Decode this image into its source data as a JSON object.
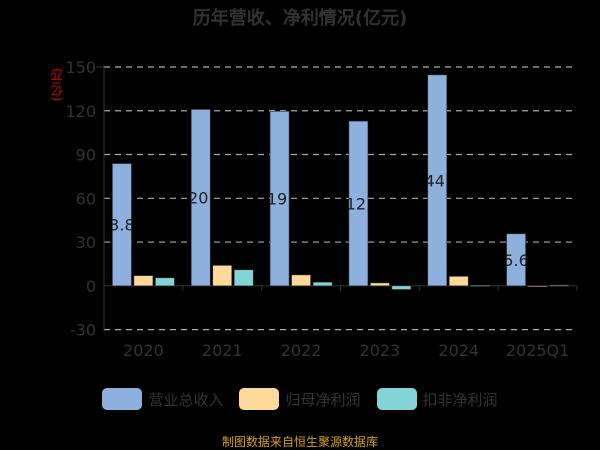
{
  "chart_data": {
    "type": "bar",
    "title": "历年营收、净利情况(亿元)",
    "ylabel": "(亿元)",
    "categories": [
      "2020",
      "2021",
      "2022",
      "2023",
      "2024",
      "2025Q1"
    ],
    "ylim": [
      -30,
      150
    ],
    "yticks": [
      -30,
      0,
      30,
      60,
      90,
      120,
      150
    ],
    "series": [
      {
        "name": "营业总收入",
        "color": "#8eb0de",
        "values": [
          83.82,
          120.9,
          119.6,
          112.9,
          144.6,
          35.68
        ],
        "labels": [
          "83.82",
          "120.9",
          "119.6",
          "112.9",
          "144.6",
          "35.68"
        ]
      },
      {
        "name": "归母净利润",
        "color": "#ffd999",
        "values": [
          7.0,
          14.0,
          7.5,
          2.0,
          6.5,
          0.1
        ]
      },
      {
        "name": "扣非净利润",
        "color": "#82d4d6",
        "values": [
          5.5,
          11.0,
          2.5,
          -2.5,
          0.3,
          0.5
        ]
      }
    ],
    "grid": true,
    "legend": "bottom"
  },
  "footer": "制图数据来自恒生聚源数据库"
}
